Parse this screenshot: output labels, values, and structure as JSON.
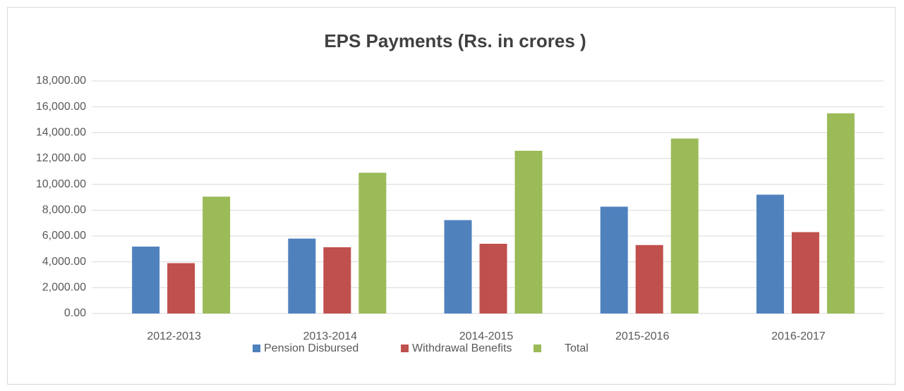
{
  "chart_data": {
    "type": "bar",
    "title": "EPS Payments  (Rs. in crores )",
    "categories": [
      "2012-2013",
      "2013-2014",
      "2014-2015",
      "2015-2016",
      "2016-2017"
    ],
    "series": [
      {
        "name": "Pension Disbursed",
        "color": "#4f81bd",
        "values": [
          5180,
          5800,
          7230,
          8270,
          9200
        ]
      },
      {
        "name": "Withdrawal Benefits",
        "color": "#c0504d",
        "values": [
          3900,
          5130,
          5400,
          5300,
          6300
        ]
      },
      {
        "name": "Total",
        "color": "#9bbb59",
        "values": [
          9050,
          10900,
          12600,
          13550,
          15500
        ]
      }
    ],
    "ylim": [
      0,
      18000
    ],
    "yticks": [
      {
        "value": 0,
        "label": "0.00"
      },
      {
        "value": 2000,
        "label": "2,000.00"
      },
      {
        "value": 4000,
        "label": "4,000.00"
      },
      {
        "value": 6000,
        "label": "6,000.00"
      },
      {
        "value": 8000,
        "label": "8,000.00"
      },
      {
        "value": 10000,
        "label": "10,000.00"
      },
      {
        "value": 12000,
        "label": "12,000.00"
      },
      {
        "value": 14000,
        "label": "14,000.00"
      },
      {
        "value": 16000,
        "label": "16,000.00"
      },
      {
        "value": 18000,
        "label": "18,000.00"
      }
    ],
    "grid": true,
    "legend": "bottom"
  }
}
